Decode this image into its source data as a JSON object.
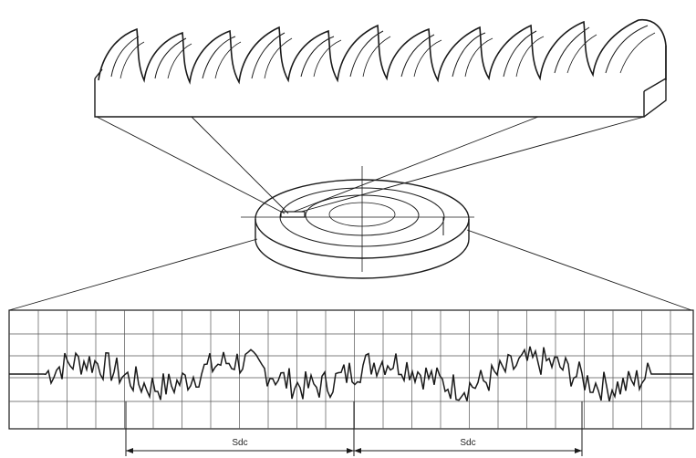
{
  "figure": {
    "dimension_labels": [
      "Sdc",
      "Sdc"
    ],
    "colors": {
      "ink": "#1a1a1a",
      "grid": "#555555",
      "background": "#ffffff"
    }
  }
}
